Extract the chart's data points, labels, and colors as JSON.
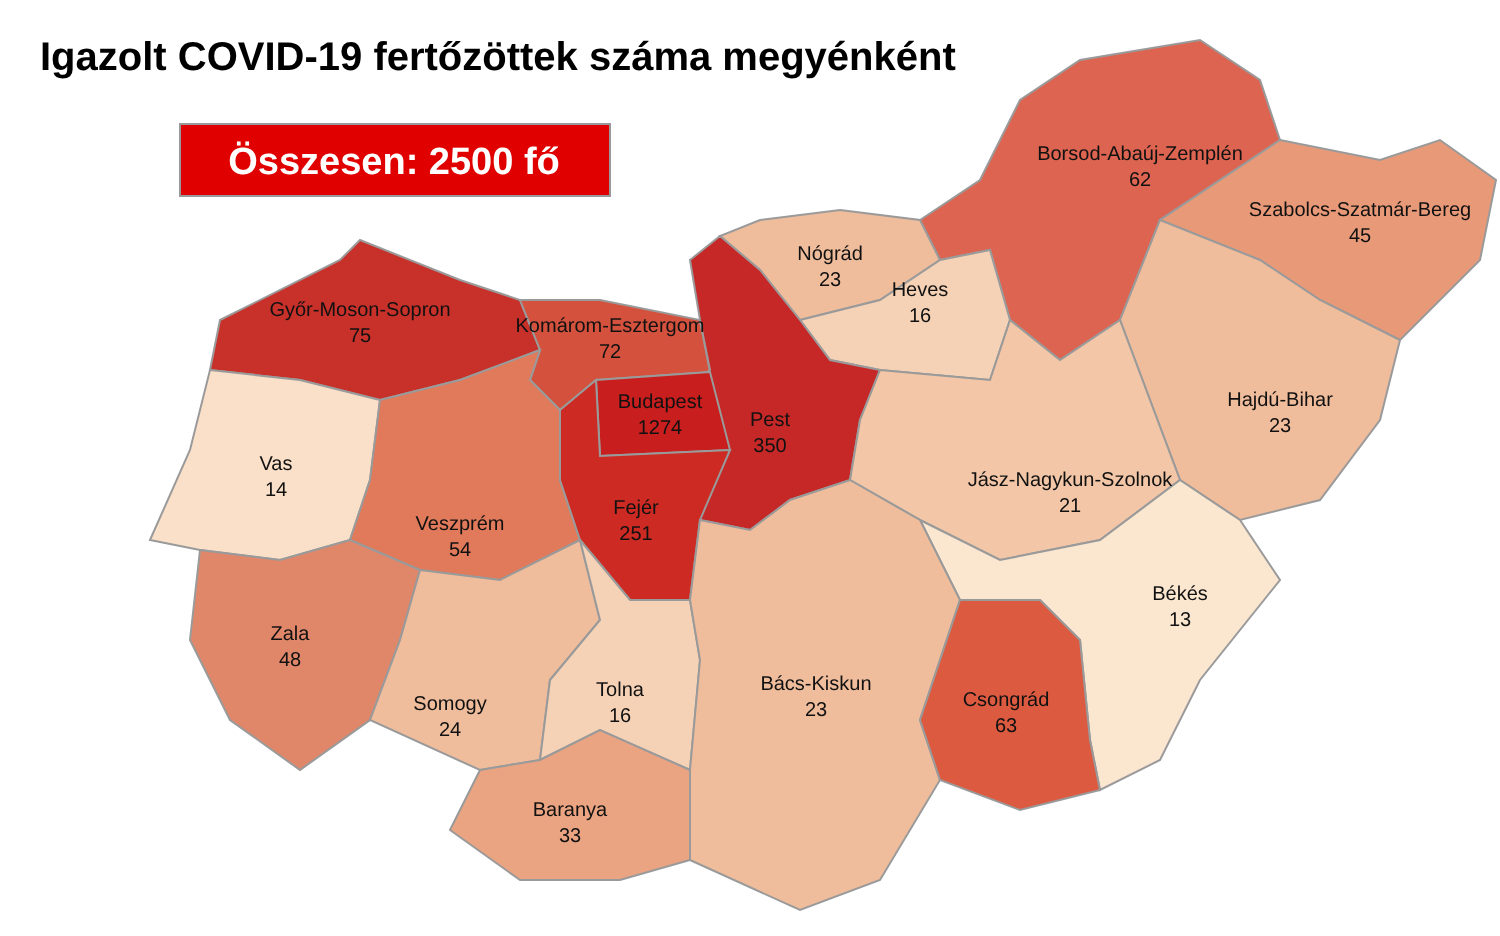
{
  "chart_data": {
    "type": "other",
    "title": "Igazolt COVID-19 fertőzöttek száma megyénként",
    "annotations": [
      "Összesen: 2500 fő"
    ],
    "categories": [
      "Borsod-Abaúj-Zemplén",
      "Szabolcs-Szatmár-Bereg",
      "Nógrád",
      "Heves",
      "Győr-Moson-Sopron",
      "Komárom-Esztergom",
      "Pest",
      "Budapest",
      "Hajdú-Bihar",
      "Jász-Nagykun-Szolnok",
      "Vas",
      "Veszprém",
      "Fejér",
      "Zala",
      "Békés",
      "Somogy",
      "Tolna",
      "Bács-Kiskun",
      "Csongrád",
      "Baranya"
    ],
    "values": [
      62,
      45,
      23,
      16,
      75,
      72,
      350,
      1274,
      23,
      21,
      14,
      54,
      251,
      48,
      13,
      24,
      16,
      23,
      63,
      33
    ],
    "data_labels": true,
    "colors": [
      "#dc6450",
      "#e89a78",
      "#f0bd9c",
      "#f5d2b6",
      "#c8302a",
      "#d4513e",
      "#c62828",
      "#c81e1e",
      "#f0bd9c",
      "#f2c6a6",
      "#fae0c8",
      "#e07a5a",
      "#cc2a22",
      "#e0876a",
      "#fbe6d0",
      "#f0bd9c",
      "#f5d2b6",
      "#f0bd9c",
      "#dc5a40",
      "#eaa482"
    ]
  }
}
